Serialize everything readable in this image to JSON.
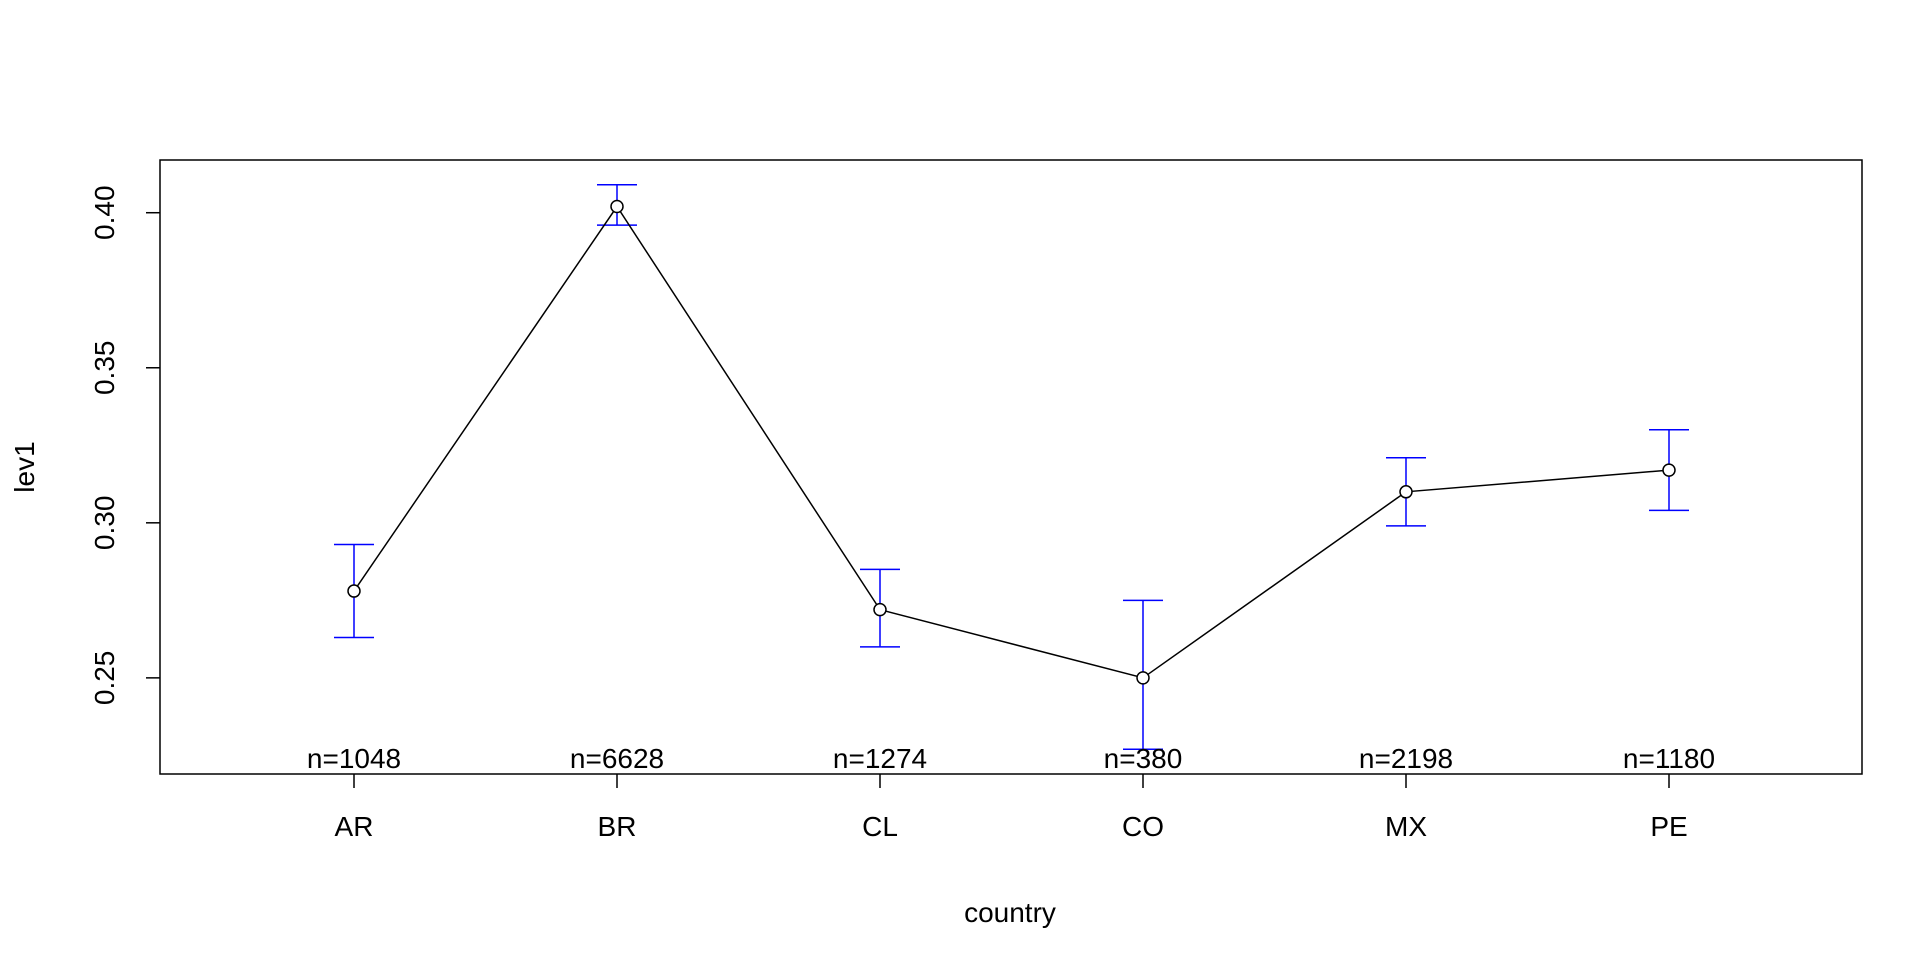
{
  "chart_data": {
    "type": "line",
    "xlabel": "country",
    "ylabel": "lev1",
    "categories": [
      "AR",
      "BR",
      "CL",
      "CO",
      "MX",
      "PE"
    ],
    "series": [
      {
        "values": [
          0.278,
          0.402,
          0.272,
          0.25,
          0.31,
          0.317
        ],
        "lower": [
          0.263,
          0.396,
          0.26,
          0.227,
          0.299,
          0.304
        ],
        "upper": [
          0.293,
          0.409,
          0.285,
          0.275,
          0.321,
          0.33
        ]
      }
    ],
    "n_labels": [
      "n=1048",
      "n=6628",
      "n=1274",
      "n=380",
      "n=2198",
      "n=1180"
    ],
    "yticks": [
      0.25,
      0.3,
      0.35,
      0.4
    ],
    "ytick_labels": [
      "0.25",
      "0.30",
      "0.35",
      "0.40"
    ],
    "ylim": [
      0.219,
      0.417
    ],
    "grid": false,
    "colors": {
      "line": "#000000",
      "errorbar": "#0000ff",
      "axis": "#000000"
    }
  }
}
